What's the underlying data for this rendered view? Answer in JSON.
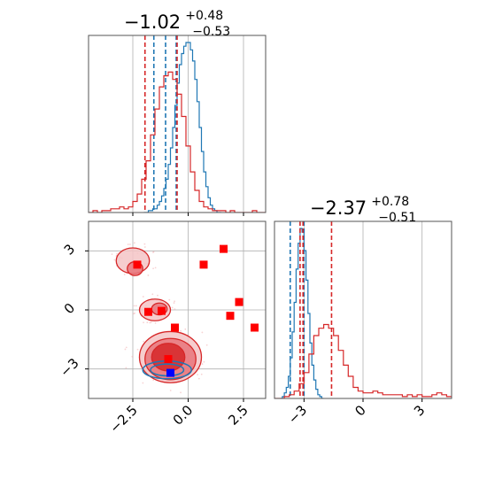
{
  "chart_data": [
    {
      "panel": "top-left",
      "type": "histogram",
      "title_main": "−1.02",
      "title_sup": "+0.48",
      "title_sub": "−0.53",
      "xlim": [
        -4.5,
        3.5
      ],
      "grid": true,
      "series": [
        {
          "name": "",
          "color": "#1f77b4",
          "bin_start": -2.0,
          "bin_width": 0.1,
          "counts": [
            0,
            0,
            1,
            1,
            2,
            2,
            4,
            6,
            9,
            13,
            18,
            26,
            35,
            46,
            58,
            70,
            80,
            86,
            90,
            92,
            92,
            88,
            82,
            72,
            60,
            46,
            33,
            22,
            14,
            8,
            4,
            2,
            1,
            0,
            0
          ],
          "quantiles": [
            -1.55,
            -1.02,
            -0.54
          ]
        },
        {
          "name": "",
          "color": "#d62728",
          "bin_start": -4.5,
          "bin_width": 0.2,
          "counts": [
            0,
            1,
            0,
            1,
            1,
            2,
            2,
            3,
            2,
            3,
            6,
            10,
            18,
            28,
            42,
            56,
            68,
            74,
            76,
            72,
            64,
            52,
            36,
            22,
            12,
            6,
            3,
            2,
            1,
            1,
            1,
            0,
            1,
            0,
            0,
            0,
            0,
            1,
            0,
            0
          ],
          "quantiles": [
            -1.95,
            -0.5
          ]
        }
      ]
    },
    {
      "panel": "bottom-right",
      "type": "histogram",
      "title_main": "−2.37",
      "title_sup": "+0.78",
      "title_sub": "−0.51",
      "xlim": [
        -4.5,
        4.5
      ],
      "xticks": [
        "−3",
        "0",
        "3"
      ],
      "xtick_values": [
        -3,
        0,
        3
      ],
      "grid": true,
      "series": [
        {
          "name": "",
          "color": "#1f77b4",
          "bin_start": -4.2,
          "bin_width": 0.1,
          "counts": [
            0,
            1,
            3,
            6,
            12,
            22,
            36,
            52,
            70,
            84,
            92,
            90,
            80,
            64,
            46,
            30,
            18,
            10,
            5,
            2,
            1,
            0
          ],
          "quantiles": [
            -3.7,
            -3.0
          ]
        },
        {
          "name": "",
          "color": "#d62728",
          "bin_start": -4.5,
          "bin_width": 0.25,
          "counts": [
            0,
            0,
            1,
            2,
            4,
            8,
            14,
            24,
            34,
            38,
            40,
            38,
            34,
            26,
            18,
            12,
            6,
            4,
            3,
            3,
            4,
            3,
            2,
            2,
            2,
            2,
            1,
            2,
            1,
            2,
            1,
            1,
            2,
            3,
            2,
            1,
            1,
            0
          ],
          "quantiles": [
            -3.2,
            -3.05,
            -1.6
          ]
        }
      ]
    },
    {
      "panel": "bottom-left",
      "type": "scatter+contour",
      "xlim": [
        -4.5,
        3.5
      ],
      "ylim": [
        -4.5,
        4.5
      ],
      "xticks": [
        "−2.5",
        "0.0",
        "2.5"
      ],
      "xtick_values": [
        -2.5,
        0.0,
        2.5
      ],
      "yticks": [
        "−3",
        "0",
        "3"
      ],
      "ytick_values": [
        -3,
        0,
        3
      ],
      "grid": true,
      "red_squares": [
        [
          -2.3,
          2.3
        ],
        [
          1.6,
          3.1
        ],
        [
          0.7,
          2.3
        ],
        [
          -1.8,
          -0.1
        ],
        [
          -1.2,
          -0.05
        ],
        [
          -0.6,
          -0.9
        ],
        [
          2.3,
          0.4
        ],
        [
          1.9,
          -0.3
        ],
        [
          3.0,
          -0.9
        ],
        [
          -0.9,
          -2.5
        ]
      ],
      "blue_squares": [
        [
          -0.8,
          -3.2
        ]
      ],
      "red_contours": [
        {
          "cx": -2.5,
          "cy": 2.5,
          "rx": 0.75,
          "ry": 0.65,
          "level": 1
        },
        {
          "cx": -2.4,
          "cy": 2.1,
          "rx": 0.35,
          "ry": 0.35,
          "level": 2
        },
        {
          "cx": -1.5,
          "cy": 0.0,
          "rx": 0.7,
          "ry": 0.55,
          "level": 1
        },
        {
          "cx": -1.3,
          "cy": 0.05,
          "rx": 0.35,
          "ry": 0.3,
          "level": 2
        },
        {
          "cx": -0.8,
          "cy": -2.4,
          "rx": 1.4,
          "ry": 1.3,
          "level": 1
        },
        {
          "cx": -0.8,
          "cy": -2.5,
          "rx": 1.15,
          "ry": 1.05,
          "level": 2
        },
        {
          "cx": -0.9,
          "cy": -2.4,
          "rx": 0.75,
          "ry": 0.7,
          "level": 3
        }
      ],
      "blue_contours": [
        {
          "cx": -0.95,
          "cy": -3.05,
          "rx": 1.1,
          "ry": 0.45
        },
        {
          "cx": -0.95,
          "cy": -3.05,
          "rx": 0.75,
          "ry": 0.3
        }
      ]
    }
  ]
}
